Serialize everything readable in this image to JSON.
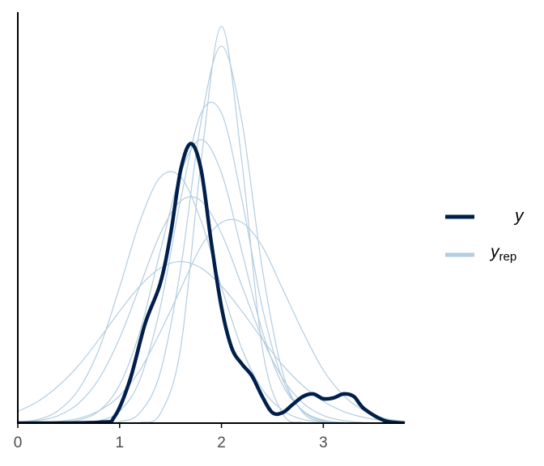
{
  "chart_data": {
    "type": "density_overlay",
    "xlim": [
      0,
      3.8
    ],
    "ylim": [
      0,
      1.45
    ],
    "xticks": [
      0,
      1,
      2,
      3
    ],
    "series": [
      {
        "name": "y",
        "color": "#011f4b",
        "x": [
          0,
          0.8,
          0.95,
          1.1,
          1.25,
          1.4,
          1.5,
          1.6,
          1.7,
          1.8,
          1.9,
          2.0,
          2.1,
          2.2,
          2.3,
          2.4,
          2.5,
          2.6,
          2.7,
          2.8,
          2.9,
          3.0,
          3.1,
          3.2,
          3.3,
          3.4,
          3.6,
          3.8
        ],
        "values": [
          0,
          0.003,
          0.023,
          0.151,
          0.351,
          0.494,
          0.666,
          0.894,
          0.986,
          0.894,
          0.637,
          0.409,
          0.266,
          0.209,
          0.166,
          0.094,
          0.037,
          0.037,
          0.066,
          0.094,
          0.103,
          0.086,
          0.089,
          0.103,
          0.094,
          0.051,
          0.009,
          0
        ]
      },
      {
        "name": "y",
        "name_sub": "rep",
        "color": "#b3cde0",
        "x": [
          0,
          0.2,
          0.4,
          0.6,
          0.8,
          1.0,
          1.2,
          1.4,
          1.6,
          1.8,
          2.0,
          2.2,
          2.4,
          2.6,
          2.8,
          3.0,
          3.2,
          3.4,
          3.6,
          3.8
        ],
        "values": [
          [
            0,
            0,
            0.002,
            0.011,
            0.044,
            0.135,
            0.325,
            0.607,
            0.882,
            1,
            0.882,
            0.607,
            0.325,
            0.135,
            0.044,
            0.011,
            0.002,
            0,
            0,
            0
          ],
          [
            0.002,
            0.009,
            0.027,
            0.071,
            0.158,
            0.3,
            0.485,
            0.669,
            0.784,
            0.784,
            0.669,
            0.485,
            0.3,
            0.158,
            0.071,
            0.027,
            0.009,
            0.002,
            0.001,
            0
          ],
          [
            0,
            0,
            0,
            0,
            0,
            0.005,
            0.037,
            0.18,
            0.547,
            1.066,
            1.33,
            1.066,
            0.547,
            0.18,
            0.037,
            0.005,
            0,
            0,
            0,
            0
          ],
          [
            0.004,
            0.013,
            0.045,
            0.12,
            0.263,
            0.48,
            0.713,
            0.868,
            0.868,
            0.713,
            0.48,
            0.263,
            0.12,
            0.045,
            0.013,
            0.004,
            0,
            0,
            0,
            0
          ],
          [
            0,
            0.002,
            0.006,
            0.017,
            0.044,
            0.097,
            0.187,
            0.322,
            0.474,
            0.624,
            0.708,
            0.708,
            0.624,
            0.474,
            0.322,
            0.187,
            0.097,
            0.044,
            0.017,
            0.006
          ],
          [
            0.041,
            0.077,
            0.132,
            0.205,
            0.297,
            0.395,
            0.484,
            0.547,
            0.57,
            0.547,
            0.484,
            0.395,
            0.297,
            0.205,
            0.132,
            0.077,
            0.041,
            0.02,
            0.009,
            0.004
          ],
          [
            0,
            0,
            0,
            0.001,
            0.008,
            0.042,
            0.154,
            0.41,
            0.79,
            1.094,
            1.094,
            0.79,
            0.41,
            0.154,
            0.042,
            0.008,
            0,
            0,
            0,
            0
          ],
          [
            0,
            0,
            0,
            0,
            0,
            0,
            0.002,
            0.034,
            0.267,
            0.924,
            1.4,
            0.924,
            0.267,
            0.034,
            0.002,
            0,
            0,
            0,
            0,
            0
          ]
        ]
      }
    ]
  }
}
